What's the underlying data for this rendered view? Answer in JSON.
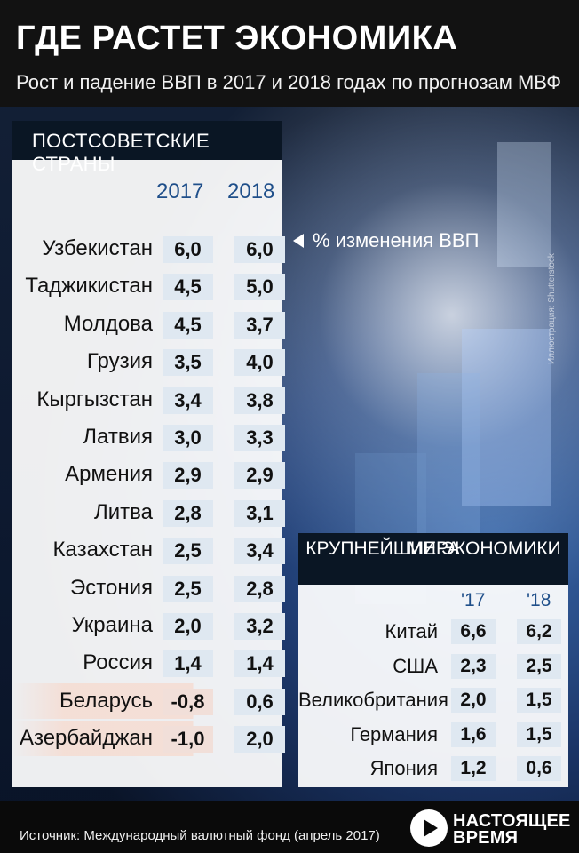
{
  "header": {
    "title": "ГДЕ РАСТЕТ ЭКОНОМИКА",
    "subtitle": "Рост и падение ВВП в 2017 и 2018 годах по прогнозам МВФ"
  },
  "watermark": "Иллюстрация: Shutterstock",
  "left_table": {
    "title": "ПОСТСОВЕТСКИЕ СТРАНЫ",
    "years": [
      "2017",
      "2018"
    ],
    "legend": "% изменения ВВП",
    "rows": [
      {
        "country": "Узбекистан",
        "v2017": "6,0",
        "v2018": "6,0"
      },
      {
        "country": "Таджикистан",
        "v2017": "4,5",
        "v2018": "5,0"
      },
      {
        "country": "Молдова",
        "v2017": "4,5",
        "v2018": "3,7"
      },
      {
        "country": "Грузия",
        "v2017": "3,5",
        "v2018": "4,0"
      },
      {
        "country": "Кыргызстан",
        "v2017": "3,4",
        "v2018": "3,8"
      },
      {
        "country": "Латвия",
        "v2017": "3,0",
        "v2018": "3,3"
      },
      {
        "country": "Армения",
        "v2017": "2,9",
        "v2018": "2,9"
      },
      {
        "country": "Литва",
        "v2017": "2,8",
        "v2018": "3,1"
      },
      {
        "country": "Казахстан",
        "v2017": "2,5",
        "v2018": "3,4"
      },
      {
        "country": "Эстония",
        "v2017": "2,5",
        "v2018": "2,8"
      },
      {
        "country": "Украина",
        "v2017": "2,0",
        "v2018": "3,2"
      },
      {
        "country": "Россия",
        "v2017": "1,4",
        "v2018": "1,4"
      },
      {
        "country": "Беларусь",
        "v2017": "-0,8",
        "v2018": "0,6"
      },
      {
        "country": "Азербайджан",
        "v2017": "-1,0",
        "v2018": "2,0"
      }
    ]
  },
  "right_table": {
    "title_line1": "КРУПНЕЙШИЕ ЭКОНОМИКИ",
    "title_line2": "МИРА",
    "years": [
      "'17",
      "'18"
    ],
    "rows": [
      {
        "country": "Китай",
        "v2017": "6,6",
        "v2018": "6,2"
      },
      {
        "country": "США",
        "v2017": "2,3",
        "v2018": "2,5"
      },
      {
        "country": "Великобритания",
        "v2017": "2,0",
        "v2018": "1,5"
      },
      {
        "country": "Германия",
        "v2017": "1,6",
        "v2018": "1,5"
      },
      {
        "country": "Япония",
        "v2017": "1,2",
        "v2018": "0,6"
      }
    ]
  },
  "footer": {
    "source": "Источник: Международный валютный фонд (апрель 2017)",
    "logo_line1": "НАСТОЯЩЕЕ",
    "logo_line2": "ВРЕМЯ"
  }
}
